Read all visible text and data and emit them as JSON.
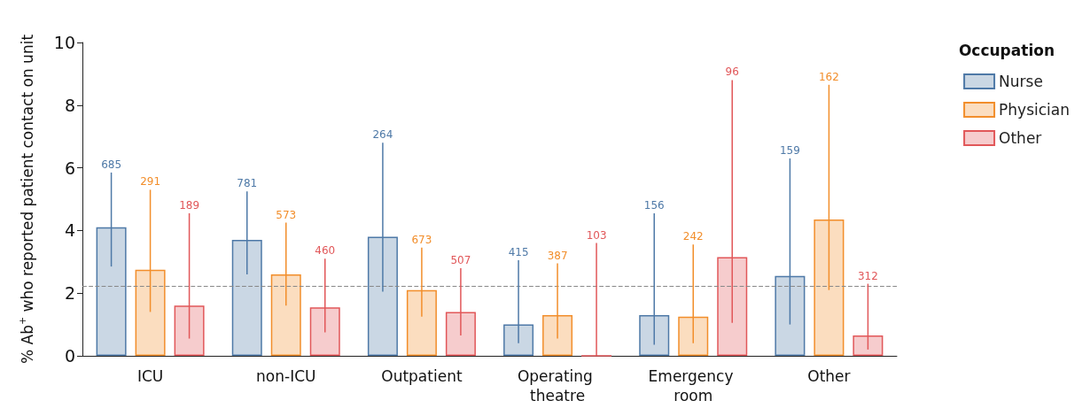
{
  "chart_data": {
    "type": "bar",
    "ylabel": "% Ab$^{+}$ who reported patient contact on unit",
    "legend_title": "Occupation",
    "legend": "top right",
    "grid": false,
    "categories": [
      "ICU",
      "non-ICU",
      "Outpatient",
      "Operating theatre",
      "Emergency room",
      "Other"
    ],
    "ylim": [
      0,
      10
    ],
    "yticks": [
      0,
      2,
      4,
      6,
      8,
      10
    ],
    "series": [
      {
        "name": "Nurse",
        "color": "#4e79a7",
        "values": [
          4.1,
          3.7,
          3.8,
          1.0,
          1.3,
          2.55
        ],
        "errors": [
          [
            2.85,
            5.85
          ],
          [
            2.6,
            5.25
          ],
          [
            2.05,
            6.8
          ],
          [
            0.4,
            3.05
          ],
          [
            0.35,
            4.55
          ],
          [
            1.0,
            6.3
          ]
        ]
      },
      {
        "name": "Physician",
        "color": "#f28e2b",
        "values": [
          2.75,
          2.6,
          2.1,
          1.3,
          1.25,
          4.35
        ],
        "errors": [
          [
            1.4,
            5.3
          ],
          [
            1.6,
            4.25
          ],
          [
            1.25,
            3.45
          ],
          [
            0.55,
            2.95
          ],
          [
            0.4,
            3.55
          ],
          [
            2.1,
            8.65
          ]
        ]
      },
      {
        "name": "Other",
        "color": "#e15759",
        "values": [
          1.6,
          1.55,
          1.4,
          0,
          3.15,
          0.65
        ],
        "errors": [
          [
            0.55,
            4.55
          ],
          [
            0.75,
            3.1
          ],
          [
            0.65,
            2.8
          ],
          [
            0,
            3.6
          ],
          [
            1.05,
            8.8
          ],
          [
            0.2,
            2.3
          ]
        ]
      }
    ],
    "annotations": [
      "685",
      "781",
      "264",
      "415",
      "156",
      "159",
      "291",
      "573",
      "673",
      "387",
      "242",
      "162",
      "189",
      "460",
      "507",
      "103",
      "96",
      "312"
    ],
    "ref_lines": [
      {
        "axis": "y",
        "value": 2.22,
        "color": "#888888",
        "line_style": "dashed"
      }
    ]
  }
}
